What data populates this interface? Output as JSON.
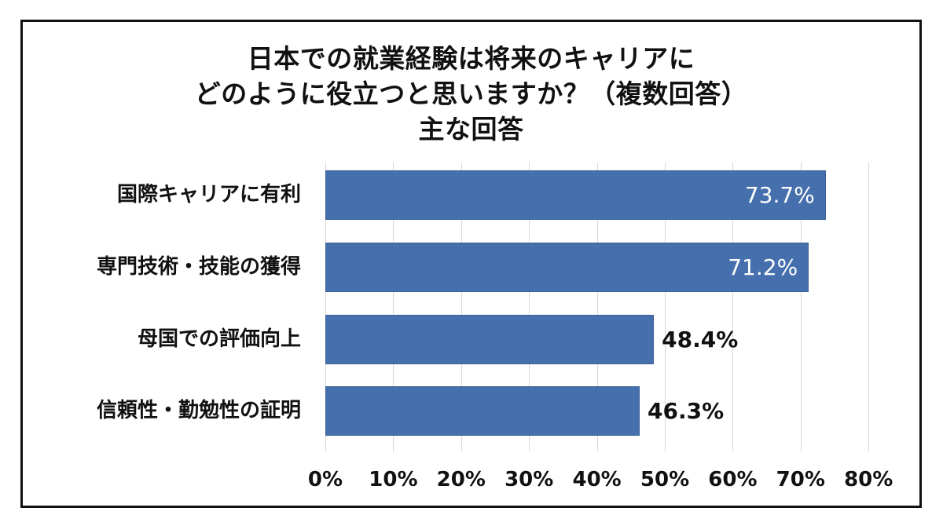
{
  "chart_data": {
    "type": "bar",
    "orientation": "horizontal",
    "title": "日本での就業経験は将来のキャリアにどのように役立つと思いますか？（複数回答）主な回答",
    "title_lines": [
      "日本での就業経験は将来のキャリアに",
      "どのように役立つと思いますか？（複数回答）",
      "主な回答"
    ],
    "categories": [
      "国際キャリアに有利",
      "専門技術・技能の獲得",
      "母国での評価向上",
      "信頼性・勤勉性の証明"
    ],
    "values": [
      73.7,
      71.2,
      48.4,
      46.3
    ],
    "value_labels": [
      "73.7%",
      "71.2%",
      "48.4%",
      "46.3%"
    ],
    "xlabel": "",
    "ylabel": "",
    "xlim": [
      0,
      80
    ],
    "x_ticks": [
      "0%",
      "10%",
      "20%",
      "30%",
      "40%",
      "50%",
      "60%",
      "70%",
      "80%"
    ],
    "grid": true,
    "legend": "none",
    "bar_color": "#4570ad"
  }
}
